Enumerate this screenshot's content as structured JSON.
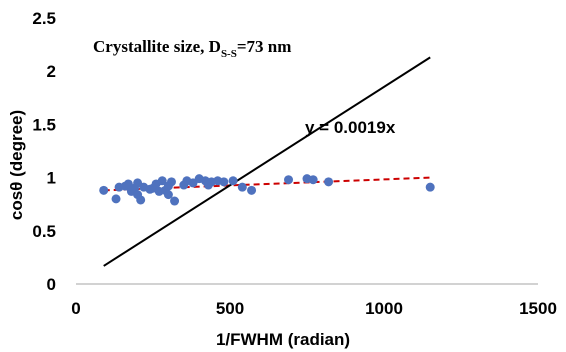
{
  "chart_data": {
    "type": "scatter",
    "xlabel": "1/FWHM (radian)",
    "ylabel": "cosθ (degree)",
    "xlim": [
      0,
      1500
    ],
    "ylim": [
      0,
      2.5
    ],
    "x_ticks": [
      "0",
      "500",
      "1000",
      "1500"
    ],
    "y_ticks": [
      "0",
      "0.5",
      "1",
      "1.5",
      "2",
      "2.5"
    ],
    "grid": false,
    "annotation": {
      "main": "Crystallite size, D",
      "sub": "S-S",
      "tail": "=73 nm"
    },
    "equation_label": "y = 0.0019x",
    "colors": {
      "points": "#4f72be",
      "trend": "#cc0000",
      "fit_line": "#000000"
    },
    "series": [
      {
        "type": "scatter",
        "points": [
          [
            90,
            0.88
          ],
          [
            130,
            0.8
          ],
          [
            140,
            0.91
          ],
          [
            160,
            0.92
          ],
          [
            170,
            0.94
          ],
          [
            180,
            0.87
          ],
          [
            190,
            0.9
          ],
          [
            200,
            0.84
          ],
          [
            200,
            0.95
          ],
          [
            210,
            0.79
          ],
          [
            220,
            0.91
          ],
          [
            240,
            0.89
          ],
          [
            250,
            0.9
          ],
          [
            260,
            0.94
          ],
          [
            270,
            0.87
          ],
          [
            280,
            0.97
          ],
          [
            290,
            0.88
          ],
          [
            300,
            0.92
          ],
          [
            300,
            0.84
          ],
          [
            310,
            0.96
          ],
          [
            320,
            0.78
          ],
          [
            350,
            0.93
          ],
          [
            360,
            0.97
          ],
          [
            380,
            0.95
          ],
          [
            400,
            0.99
          ],
          [
            420,
            0.97
          ],
          [
            430,
            0.93
          ],
          [
            440,
            0.96
          ],
          [
            460,
            0.97
          ],
          [
            480,
            0.96
          ],
          [
            510,
            0.97
          ],
          [
            540,
            0.91
          ],
          [
            570,
            0.88
          ],
          [
            690,
            0.98
          ],
          [
            750,
            0.99
          ],
          [
            770,
            0.98
          ],
          [
            820,
            0.96
          ],
          [
            1150,
            0.91
          ]
        ]
      },
      {
        "type": "line",
        "style": "dashed",
        "points": [
          [
            90,
            0.88
          ],
          [
            1150,
            1.0
          ]
        ]
      },
      {
        "type": "line",
        "style": "solid",
        "points": [
          [
            90,
            0.17
          ],
          [
            1150,
            2.13
          ]
        ]
      }
    ]
  }
}
